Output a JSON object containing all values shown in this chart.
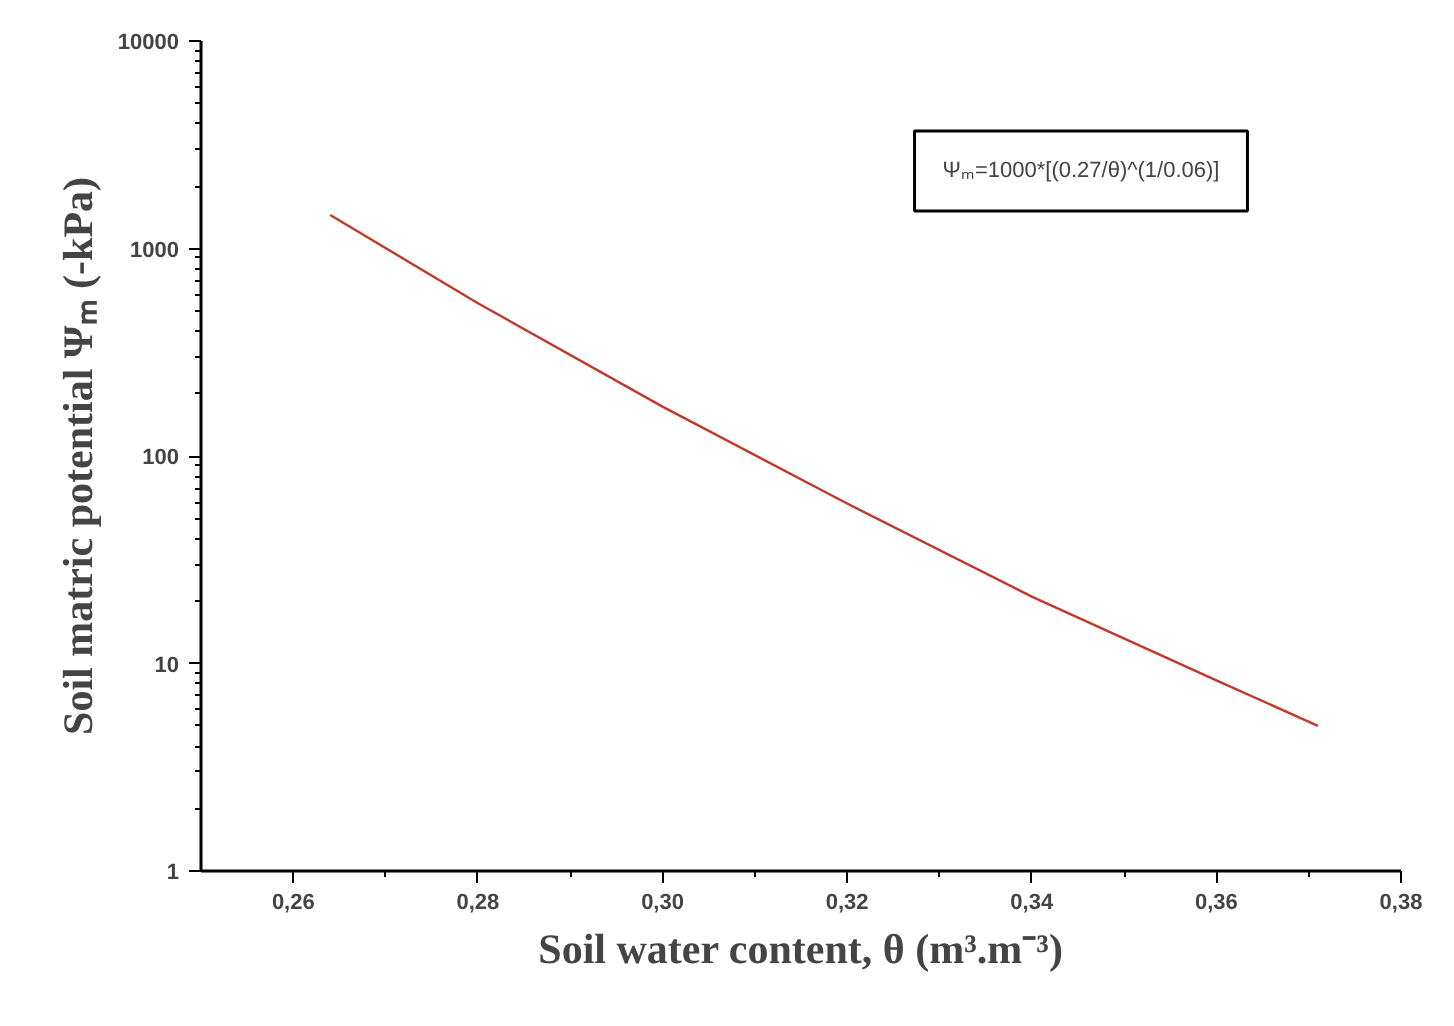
{
  "chart_data": {
    "type": "line",
    "xlabel": "Soil water content, θ (m³.m⁻³)",
    "ylabel": "Soil matric potential Ψₘ (-kPa)",
    "x": [
      0.264,
      0.28,
      0.3,
      0.32,
      0.34,
      0.36,
      0.371
    ],
    "series": [
      {
        "color": "#c0392b",
        "values": [
          1450,
          545,
          173,
          59,
          21,
          8.3,
          5
        ]
      }
    ],
    "annotations": [
      "Ψₘ=1000*[(0.27/θ)^(1/0.06)]"
    ],
    "log": "y",
    "grid": false,
    "marker": "none",
    "line_style": "solid",
    "xlim": [
      0.25,
      0.38
    ],
    "ylim": [
      1,
      10000
    ],
    "xticks": [
      {
        "value": 0.26,
        "label": "0,26"
      },
      {
        "value": 0.28,
        "label": "0,28"
      },
      {
        "value": 0.3,
        "label": "0,30"
      },
      {
        "value": 0.32,
        "label": "0,32"
      },
      {
        "value": 0.34,
        "label": "0,34"
      },
      {
        "value": 0.36,
        "label": "0,36"
      },
      {
        "value": 0.38,
        "label": "0,38"
      }
    ],
    "yticks": [
      1,
      10,
      100,
      1000,
      10000
    ]
  }
}
